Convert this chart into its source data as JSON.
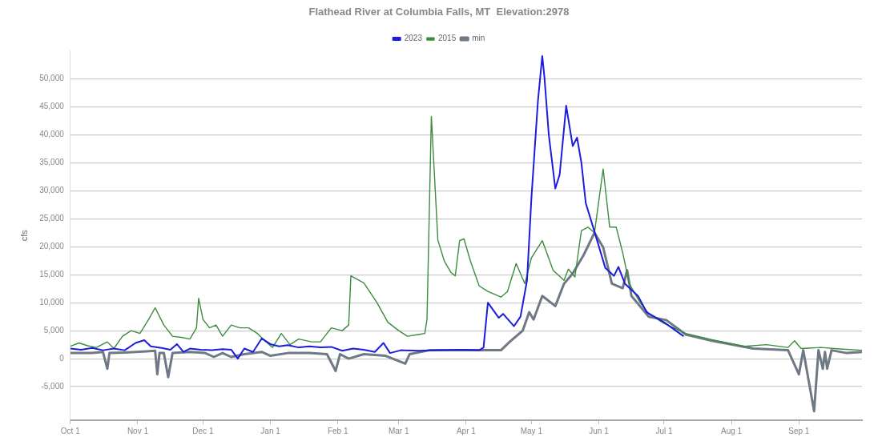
{
  "chart_data": {
    "type": "line",
    "title": "Flathead River at Columbia Falls, MT  Elevation:2978",
    "ylabel": "cfs",
    "legend": "top",
    "grid": "y",
    "marker": "none",
    "line_style": "solid",
    "xlim": [
      "2022-10-01",
      "2023-09-30"
    ],
    "xticks": [
      {
        "value": "2022-10-01",
        "label": "Oct 1"
      },
      {
        "value": "2022-11-01",
        "label": "Nov 1"
      },
      {
        "value": "2022-12-01",
        "label": "Dec 1"
      },
      {
        "value": "2023-01-01",
        "label": "Jan 1"
      },
      {
        "value": "2023-02-01",
        "label": "Feb 1"
      },
      {
        "value": "2023-03-01",
        "label": "Mar 1"
      },
      {
        "value": "2023-04-01",
        "label": "Apr 1"
      },
      {
        "value": "2023-05-01",
        "label": "May 1"
      },
      {
        "value": "2023-06-01",
        "label": "Jun 1"
      },
      {
        "value": "2023-07-01",
        "label": "Jul 1"
      },
      {
        "value": "2023-08-01",
        "label": "Aug 1"
      },
      {
        "value": "2023-09-01",
        "label": "Sep 1"
      }
    ],
    "ylim": [
      -11000,
      55000
    ],
    "yticks": [
      {
        "value": -5000,
        "label": "-5,000"
      },
      {
        "value": 0,
        "label": "0"
      },
      {
        "value": 5000,
        "label": "5,000"
      },
      {
        "value": 10000,
        "label": "10,000"
      },
      {
        "value": 15000,
        "label": "15,000"
      },
      {
        "value": 20000,
        "label": "20,000"
      },
      {
        "value": 25000,
        "label": "25,000"
      },
      {
        "value": 30000,
        "label": "30,000"
      },
      {
        "value": 35000,
        "label": "35,000"
      },
      {
        "value": 40000,
        "label": "40,000"
      },
      {
        "value": 45000,
        "label": "45,000"
      },
      {
        "value": 50000,
        "label": "50,000"
      }
    ],
    "series": [
      {
        "name": "2023",
        "color": "#1c1ce0",
        "x": [
          "2022-10-01",
          "2022-10-06",
          "2022-10-11",
          "2022-10-16",
          "2022-10-21",
          "2022-10-26",
          "2022-10-31",
          "2022-11-04",
          "2022-11-07",
          "2022-11-12",
          "2022-11-16",
          "2022-11-19",
          "2022-11-22",
          "2022-11-25",
          "2022-11-30",
          "2022-12-05",
          "2022-12-10",
          "2022-12-14",
          "2022-12-17",
          "2022-12-20",
          "2022-12-24",
          "2022-12-28",
          "2023-01-01",
          "2023-01-05",
          "2023-01-09",
          "2023-01-14",
          "2023-01-19",
          "2023-01-24",
          "2023-01-29",
          "2023-02-03",
          "2023-02-08",
          "2023-02-13",
          "2023-02-18",
          "2023-02-22",
          "2023-02-25",
          "2023-03-02",
          "2023-03-10",
          "2023-03-20",
          "2023-03-30",
          "2023-04-07",
          "2023-04-09",
          "2023-04-11",
          "2023-04-16",
          "2023-04-18",
          "2023-04-23",
          "2023-04-26",
          "2023-04-29",
          "2023-05-01",
          "2023-05-04",
          "2023-05-06",
          "2023-05-07",
          "2023-05-09",
          "2023-05-12",
          "2023-05-14",
          "2023-05-17",
          "2023-05-20",
          "2023-05-22",
          "2023-05-24",
          "2023-05-26",
          "2023-05-30",
          "2023-06-04",
          "2023-06-08",
          "2023-06-10",
          "2023-06-13",
          "2023-06-19",
          "2023-06-23",
          "2023-07-01",
          "2023-07-10"
        ],
        "values": [
          1800,
          1600,
          1900,
          1500,
          1800,
          1500,
          2800,
          3300,
          2200,
          1900,
          1600,
          2600,
          1200,
          1800,
          1600,
          1500,
          1700,
          1600,
          0,
          1800,
          1200,
          3600,
          2600,
          2200,
          2400,
          2000,
          2200,
          2000,
          2100,
          1400,
          1800,
          1600,
          1200,
          2800,
          1000,
          1500,
          1400,
          1500,
          1600,
          1500,
          2000,
          10000,
          7300,
          8000,
          5800,
          7500,
          14000,
          28600,
          46000,
          54100,
          50300,
          40000,
          30400,
          32900,
          45200,
          38000,
          39500,
          35000,
          27800,
          22700,
          16200,
          14800,
          16400,
          13400,
          11200,
          8300,
          6500,
          4000
        ]
      },
      {
        "name": "2015",
        "color": "#3d8b3d",
        "x": [
          "2022-10-01",
          "2022-10-05",
          "2022-10-09",
          "2022-10-13",
          "2022-10-18",
          "2022-10-21",
          "2022-10-25",
          "2022-10-29",
          "2022-11-02",
          "2022-11-06",
          "2022-11-09",
          "2022-11-13",
          "2022-11-17",
          "2022-11-21",
          "2022-11-25",
          "2022-11-28",
          "2022-11-29",
          "2022-12-01",
          "2022-12-04",
          "2022-12-07",
          "2022-12-10",
          "2022-12-14",
          "2022-12-18",
          "2022-12-22",
          "2022-12-26",
          "2022-12-30",
          "2023-01-02",
          "2023-01-06",
          "2023-01-10",
          "2023-01-14",
          "2023-01-20",
          "2023-01-24",
          "2023-01-29",
          "2023-02-03",
          "2023-02-06",
          "2023-02-07",
          "2023-02-13",
          "2023-02-19",
          "2023-02-24",
          "2023-03-01",
          "2023-03-05",
          "2023-03-10",
          "2023-03-13",
          "2023-03-14",
          "2023-03-16",
          "2023-03-19",
          "2023-03-22",
          "2023-03-25",
          "2023-03-27",
          "2023-03-29",
          "2023-03-31",
          "2023-04-03",
          "2023-04-07",
          "2023-04-11",
          "2023-04-14",
          "2023-04-17",
          "2023-04-20",
          "2023-04-24",
          "2023-04-28",
          "2023-05-01",
          "2023-05-06",
          "2023-05-11",
          "2023-05-16",
          "2023-05-18",
          "2023-05-21",
          "2023-05-24",
          "2023-05-27",
          "2023-05-30",
          "2023-06-03",
          "2023-06-06",
          "2023-06-09",
          "2023-06-12",
          "2023-06-15",
          "2023-06-20",
          "2023-06-24",
          "2023-07-01",
          "2023-07-11",
          "2023-07-23",
          "2023-08-07",
          "2023-08-17",
          "2023-08-27",
          "2023-08-30",
          "2023-09-02",
          "2023-09-11",
          "2023-09-21",
          "2023-09-30"
        ],
        "values": [
          2200,
          2800,
          2300,
          2000,
          3000,
          1800,
          4000,
          5000,
          4500,
          7000,
          9100,
          6000,
          4000,
          3800,
          3500,
          5500,
          10800,
          7000,
          5500,
          6000,
          4000,
          6000,
          5500,
          5500,
          4500,
          3000,
          2000,
          4500,
          2500,
          3500,
          3000,
          3000,
          5500,
          5000,
          6000,
          14800,
          13500,
          10000,
          6500,
          5000,
          4000,
          4300,
          4500,
          7000,
          43300,
          21200,
          17400,
          15400,
          14800,
          21100,
          21400,
          17400,
          13000,
          12000,
          11500,
          11000,
          12000,
          17000,
          13400,
          18000,
          21100,
          15800,
          14000,
          16000,
          14600,
          22900,
          23500,
          22500,
          33900,
          23500,
          23500,
          18900,
          13400,
          10000,
          8000,
          6300,
          4500,
          3400,
          2200,
          2500,
          2000,
          3200,
          1800,
          2000,
          1700,
          1500
        ]
      },
      {
        "name": "min",
        "color": "#6f7885",
        "x": [
          "2022-10-01",
          "2022-10-11",
          "2022-10-16",
          "2022-10-18",
          "2022-10-19",
          "2022-10-26",
          "2022-11-05",
          "2022-11-09",
          "2022-11-10",
          "2022-11-11",
          "2022-11-13",
          "2022-11-15",
          "2022-11-17",
          "2022-11-25",
          "2022-12-02",
          "2022-12-06",
          "2022-12-10",
          "2022-12-14",
          "2022-12-20",
          "2022-12-28",
          "2023-01-01",
          "2023-01-09",
          "2023-01-19",
          "2023-01-27",
          "2023-01-31",
          "2023-02-02",
          "2023-02-06",
          "2023-02-13",
          "2023-02-23",
          "2023-03-04",
          "2023-03-06",
          "2023-03-15",
          "2023-03-30",
          "2023-04-14",
          "2023-04-17",
          "2023-04-21",
          "2023-04-27",
          "2023-04-30",
          "2023-05-02",
          "2023-05-06",
          "2023-05-12",
          "2023-05-16",
          "2023-05-20",
          "2023-05-25",
          "2023-05-30",
          "2023-06-03",
          "2023-06-07",
          "2023-06-12",
          "2023-06-14",
          "2023-06-16",
          "2023-06-24",
          "2023-07-02",
          "2023-07-11",
          "2023-07-23",
          "2023-08-11",
          "2023-08-27",
          "2023-09-01",
          "2023-09-03",
          "2023-09-08",
          "2023-09-10",
          "2023-09-12",
          "2023-09-13",
          "2023-09-14",
          "2023-09-16",
          "2023-09-23",
          "2023-09-30"
        ],
        "values": [
          1000,
          1000,
          1200,
          -1800,
          1000,
          1100,
          1300,
          1400,
          -2800,
          1000,
          1000,
          -3300,
          1000,
          1200,
          1000,
          300,
          1000,
          300,
          800,
          1200,
          500,
          1000,
          1000,
          800,
          -2200,
          800,
          0,
          800,
          500,
          -900,
          800,
          1500,
          1500,
          1500,
          1500,
          3000,
          5000,
          8300,
          7000,
          11200,
          9400,
          13400,
          15200,
          18500,
          22500,
          19900,
          13400,
          12600,
          15800,
          11200,
          7500,
          6900,
          4300,
          3200,
          1800,
          1500,
          -2800,
          1500,
          -9400,
          1500,
          -1800,
          1200,
          -1800,
          1500,
          1000,
          1200
        ]
      }
    ]
  }
}
